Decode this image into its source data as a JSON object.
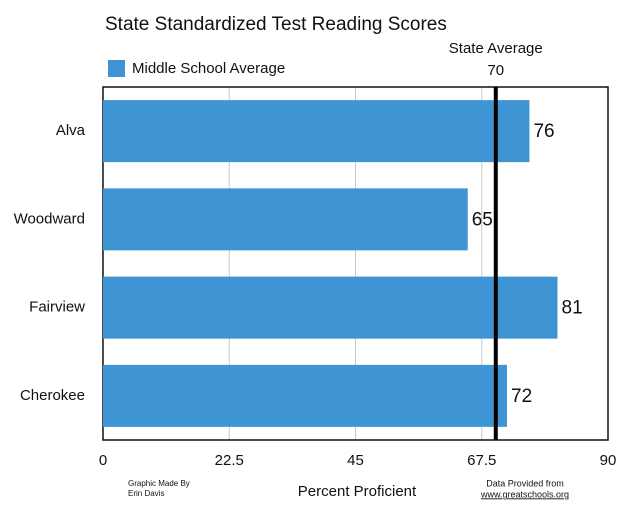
{
  "chart_data": {
    "type": "bar",
    "orientation": "horizontal",
    "title": "State Standardized Test Reading Scores",
    "categories": [
      "Alva",
      "Woodward",
      "Fairview",
      "Cherokee"
    ],
    "series": [
      {
        "name": "Middle School Average",
        "color": "#3f95d4",
        "values": [
          76,
          65,
          81,
          72
        ]
      }
    ],
    "xlim": [
      0,
      90
    ],
    "xticks": [
      0,
      22.5,
      45,
      67.5,
      90
    ],
    "xlabel": "Percent Proficient",
    "grid": true,
    "legend": "top-left",
    "reference_line": {
      "label": "State Average",
      "value": 70
    },
    "credits": {
      "left": [
        "Graphic Made By",
        "Erin Davis"
      ],
      "right": [
        "Data Provided from",
        "www.greatschools.org"
      ]
    }
  }
}
